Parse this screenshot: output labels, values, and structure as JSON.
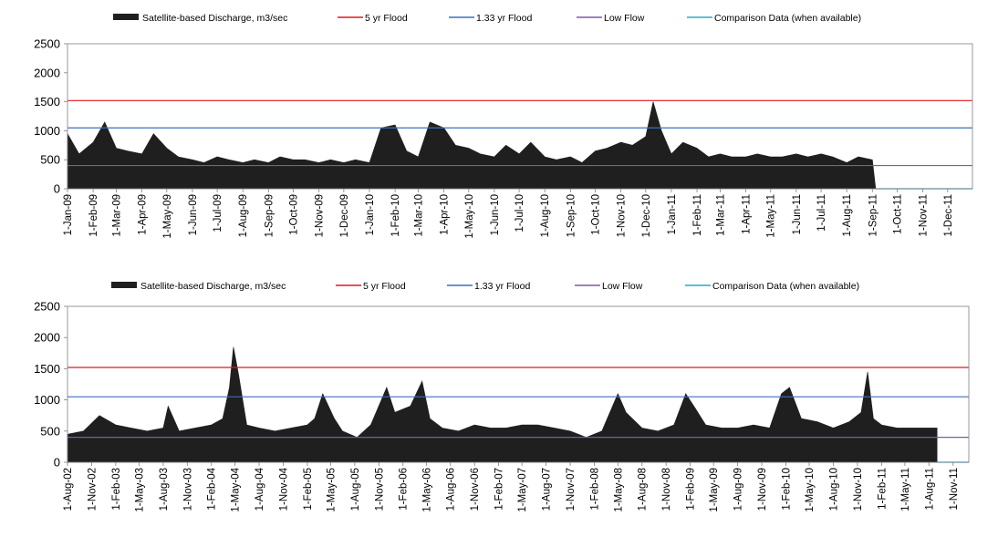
{
  "legend": {
    "items": [
      {
        "label": "Satellite-based Discharge, m3/sec",
        "color": "#1f1f1f",
        "kind": "area"
      },
      {
        "label": "5 yr Flood",
        "color": "#e0191e",
        "kind": "line"
      },
      {
        "label": "1.33 yr Flood",
        "color": "#3c6fc0",
        "kind": "line"
      },
      {
        "label": "Low Flow",
        "color": "#7e5aa6",
        "kind": "line"
      },
      {
        "label": "Comparison Data (when available)",
        "color": "#2aa9c9",
        "kind": "line"
      }
    ]
  },
  "chart_data": [
    {
      "type": "area",
      "title": "",
      "xlabel": "",
      "ylabel": "",
      "ylim": [
        0,
        2500
      ],
      "yticks": [
        "0",
        "500",
        "1000",
        "1500",
        "2000",
        "2500"
      ],
      "xlim": [
        "2009-01-01",
        "2011-12-31"
      ],
      "xtick_labels": [
        "1-Jan-09",
        "1-Feb-09",
        "1-Mar-09",
        "1-Apr-09",
        "1-May-09",
        "1-Jun-09",
        "1-Jul-09",
        "1-Aug-09",
        "1-Sep-09",
        "1-Oct-09",
        "1-Nov-09",
        "1-Dec-09",
        "1-Jan-10",
        "1-Feb-10",
        "1-Mar-10",
        "1-Apr-10",
        "1-May-10",
        "1-Jun-10",
        "1-Jul-10",
        "1-Aug-10",
        "1-Sep-10",
        "1-Oct-10",
        "1-Nov-10",
        "1-Dec-10",
        "1-Jan-11",
        "1-Feb-11",
        "1-Mar-11",
        "1-Apr-11",
        "1-May-11",
        "1-Jun-11",
        "1-Jul-11",
        "1-Aug-11",
        "1-Sep-11",
        "1-Oct-11",
        "1-Nov-11",
        "1-Dec-11"
      ],
      "reference_lines": {
        "5 yr Flood": 1520,
        "1.33 yr Flood": 1050,
        "Low Flow": 400,
        "Comparison Data (when available)": 0
      },
      "grid": false,
      "legend_position": "top",
      "series": [
        {
          "name": "Satellite-based Discharge, m3/sec",
          "x": [
            "2009-01-01",
            "2009-01-15",
            "2009-02-01",
            "2009-02-15",
            "2009-03-01",
            "2009-03-15",
            "2009-04-01",
            "2009-04-15",
            "2009-05-01",
            "2009-05-15",
            "2009-06-01",
            "2009-06-15",
            "2009-07-01",
            "2009-07-15",
            "2009-08-01",
            "2009-08-15",
            "2009-09-01",
            "2009-09-15",
            "2009-10-01",
            "2009-10-15",
            "2009-11-01",
            "2009-11-15",
            "2009-12-01",
            "2009-12-15",
            "2010-01-01",
            "2010-01-15",
            "2010-02-01",
            "2010-02-15",
            "2010-03-01",
            "2010-03-15",
            "2010-04-01",
            "2010-04-15",
            "2010-05-01",
            "2010-05-15",
            "2010-06-01",
            "2010-06-15",
            "2010-07-01",
            "2010-07-15",
            "2010-08-01",
            "2010-08-15",
            "2010-09-01",
            "2010-09-15",
            "2010-10-01",
            "2010-10-15",
            "2010-11-01",
            "2010-11-15",
            "2010-12-01",
            "2010-12-10",
            "2010-12-20",
            "2011-01-01",
            "2011-01-15",
            "2011-02-01",
            "2011-02-15",
            "2011-03-01",
            "2011-03-15",
            "2011-04-01",
            "2011-04-15",
            "2011-05-01",
            "2011-05-15",
            "2011-06-01",
            "2011-06-15",
            "2011-07-01",
            "2011-07-15",
            "2011-08-01",
            "2011-08-15",
            "2011-09-01",
            "2011-09-05"
          ],
          "values": [
            950,
            600,
            800,
            1150,
            700,
            650,
            600,
            950,
            700,
            550,
            500,
            450,
            550,
            500,
            450,
            500,
            450,
            550,
            500,
            500,
            450,
            500,
            450,
            500,
            450,
            1050,
            1100,
            650,
            550,
            1150,
            1050,
            750,
            700,
            600,
            550,
            750,
            600,
            800,
            550,
            500,
            550,
            450,
            650,
            700,
            800,
            750,
            900,
            1500,
            1000,
            600,
            800,
            700,
            550,
            600,
            550,
            550,
            600,
            550,
            550,
            600,
            550,
            600,
            550,
            450,
            550,
            500,
            0
          ]
        }
      ]
    },
    {
      "type": "area",
      "title": "",
      "xlabel": "",
      "ylabel": "",
      "ylim": [
        0,
        2500
      ],
      "yticks": [
        "0",
        "500",
        "1000",
        "1500",
        "2000",
        "2500"
      ],
      "xlim": [
        "2002-08-01",
        "2011-12-31"
      ],
      "xtick_labels": [
        "1-Aug-02",
        "1-Nov-02",
        "1-Feb-03",
        "1-May-03",
        "1-Aug-03",
        "1-Nov-03",
        "1-Feb-04",
        "1-May-04",
        "1-Aug-04",
        "1-Nov-04",
        "1-Feb-05",
        "1-May-05",
        "1-Aug-05",
        "1-Nov-05",
        "1-Feb-06",
        "1-May-06",
        "1-Aug-06",
        "1-Nov-06",
        "1-Feb-07",
        "1-May-07",
        "1-Aug-07",
        "1-Nov-07",
        "1-Feb-08",
        "1-May-08",
        "1-Aug-08",
        "1-Nov-08",
        "1-Feb-09",
        "1-May-09",
        "1-Aug-09",
        "1-Nov-09",
        "1-Feb-10",
        "1-May-10",
        "1-Aug-10",
        "1-Nov-10",
        "1-Feb-11",
        "1-May-11",
        "1-Aug-11",
        "1-Nov-11"
      ],
      "reference_lines": {
        "5 yr Flood": 1520,
        "1.33 yr Flood": 1050,
        "Low Flow": 400,
        "Comparison Data (when available)": 0
      },
      "grid": false,
      "legend_position": "top",
      "series": [
        {
          "name": "Satellite-based Discharge, m3/sec",
          "x": [
            "2002-08-01",
            "2002-10-01",
            "2002-12-01",
            "2003-02-01",
            "2003-04-01",
            "2003-06-01",
            "2003-08-01",
            "2003-08-20",
            "2003-10-01",
            "2003-12-01",
            "2004-02-01",
            "2004-03-15",
            "2004-04-10",
            "2004-04-25",
            "2004-05-15",
            "2004-06-15",
            "2004-08-01",
            "2004-10-01",
            "2004-12-01",
            "2005-02-01",
            "2005-03-01",
            "2005-04-01",
            "2005-05-15",
            "2005-06-15",
            "2005-08-10",
            "2005-10-01",
            "2005-12-01",
            "2006-01-01",
            "2006-03-01",
            "2006-04-15",
            "2006-05-15",
            "2006-07-01",
            "2006-09-01",
            "2006-11-01",
            "2007-01-01",
            "2007-03-01",
            "2007-05-01",
            "2007-07-01",
            "2007-09-01",
            "2007-11-01",
            "2008-01-01",
            "2008-03-01",
            "2008-05-01",
            "2008-06-01",
            "2008-08-01",
            "2008-10-01",
            "2008-12-01",
            "2009-01-15",
            "2009-02-15",
            "2009-04-01",
            "2009-06-01",
            "2009-08-01",
            "2009-10-01",
            "2009-12-01",
            "2010-01-15",
            "2010-02-15",
            "2010-04-01",
            "2010-06-01",
            "2010-08-01",
            "2010-10-01",
            "2010-11-15",
            "2010-12-10",
            "2011-01-01",
            "2011-02-01",
            "2011-04-01",
            "2011-06-01",
            "2011-08-01",
            "2011-09-01"
          ],
          "values": [
            450,
            500,
            750,
            600,
            550,
            500,
            550,
            900,
            500,
            550,
            600,
            700,
            1200,
            1850,
            1400,
            600,
            550,
            500,
            550,
            600,
            700,
            1100,
            700,
            500,
            400,
            600,
            1200,
            800,
            900,
            1300,
            700,
            550,
            500,
            600,
            550,
            550,
            600,
            600,
            550,
            500,
            400,
            500,
            1100,
            800,
            550,
            500,
            600,
            1100,
            900,
            600,
            550,
            550,
            600,
            550,
            1100,
            1200,
            700,
            650,
            550,
            650,
            800,
            1450,
            700,
            600,
            550,
            550,
            550,
            550
          ]
        }
      ]
    }
  ]
}
